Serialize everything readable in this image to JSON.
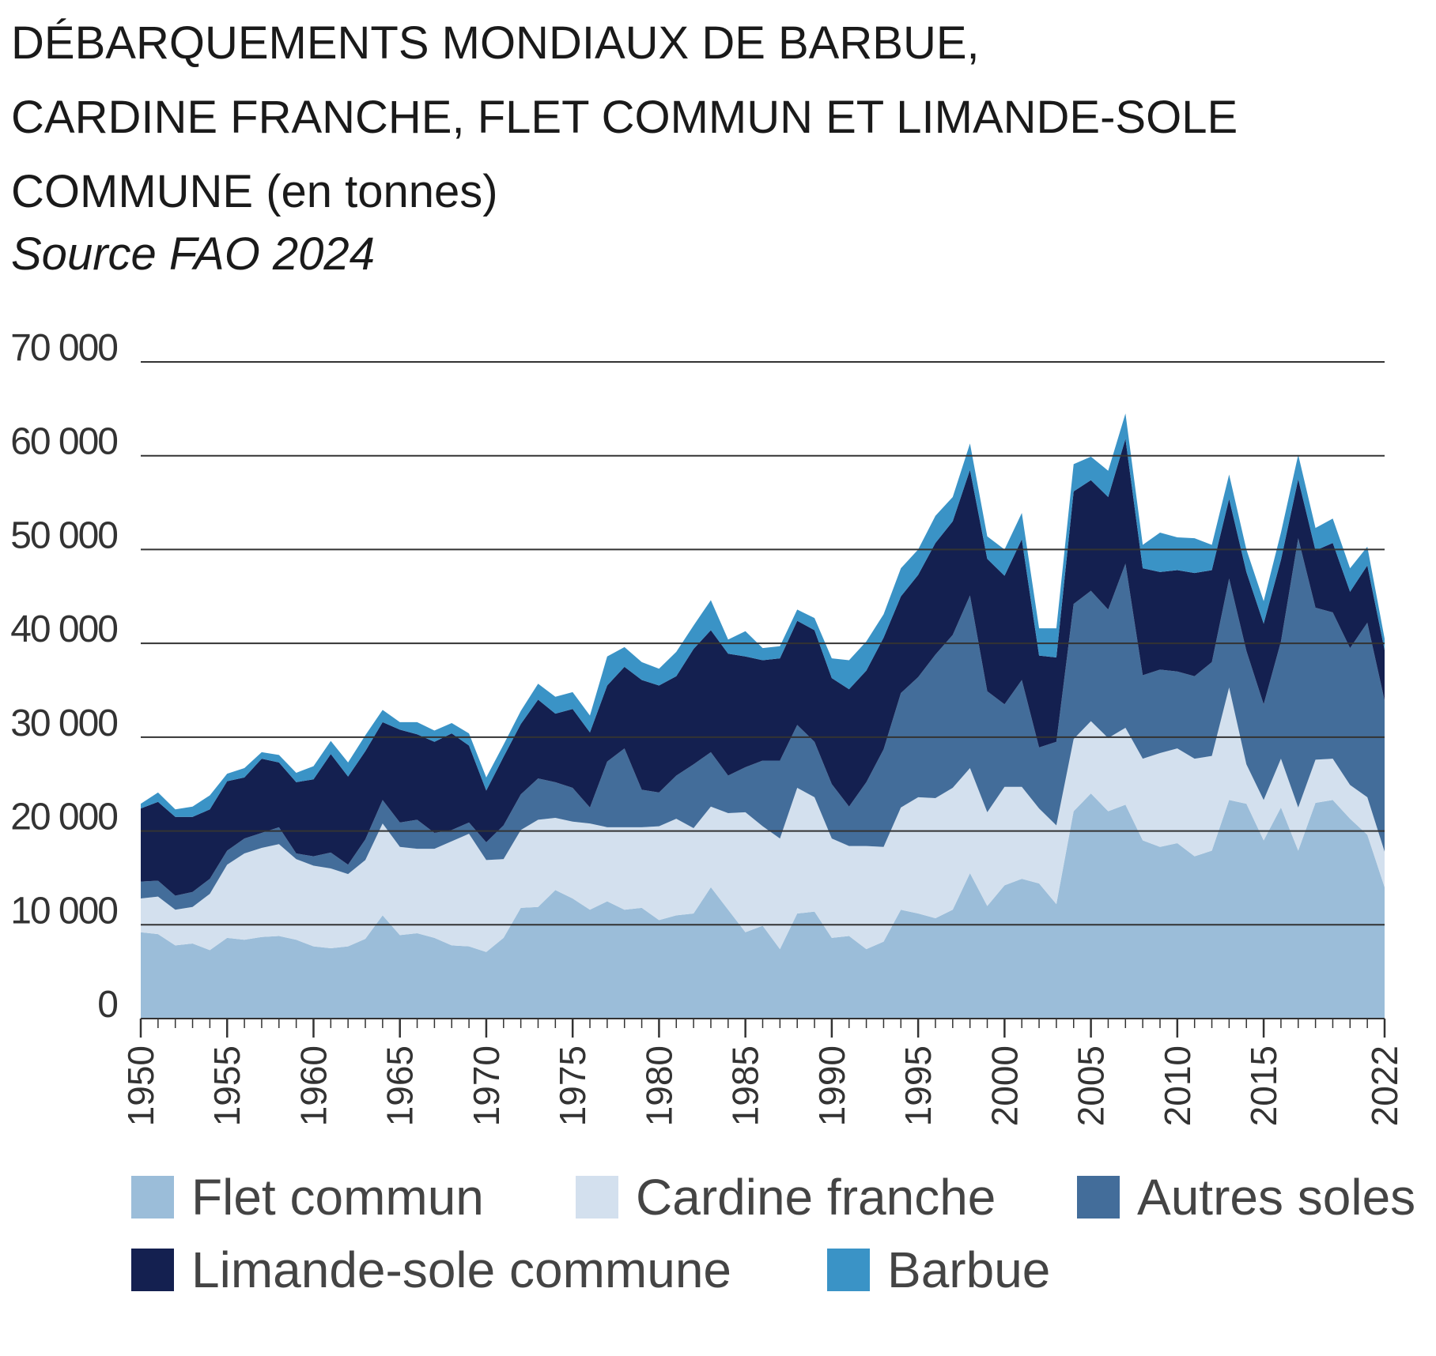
{
  "title": {
    "line1": "DÉBARQUEMENTS MONDIAUX DE BARBUE,",
    "line2": "CARDINE FRANCHE, FLET COMMUN ET LIMANDE-SOLE",
    "line3_main": "COMMUNE",
    "line3_unit": "(en tonnes)"
  },
  "source": "Source FAO 2024",
  "colors": {
    "flet": "#9bbdd9",
    "cardine": "#d3e0ee",
    "autres": "#436d9a",
    "limande": "#142050",
    "barbue": "#3a93c6",
    "grid": "#333333",
    "text": "#333333"
  },
  "chart_data": {
    "type": "area",
    "stacked": true,
    "x": [
      1950,
      1951,
      1952,
      1953,
      1954,
      1955,
      1956,
      1957,
      1958,
      1959,
      1960,
      1961,
      1962,
      1963,
      1964,
      1965,
      1966,
      1967,
      1968,
      1969,
      1970,
      1971,
      1972,
      1973,
      1974,
      1975,
      1976,
      1977,
      1978,
      1979,
      1980,
      1981,
      1982,
      1983,
      1984,
      1985,
      1986,
      1987,
      1988,
      1989,
      1990,
      1991,
      1992,
      1993,
      1994,
      1995,
      1996,
      1997,
      1998,
      1999,
      2000,
      2001,
      2002,
      2003,
      2004,
      2005,
      2006,
      2007,
      2008,
      2009,
      2010,
      2011,
      2012,
      2013,
      2014,
      2015,
      2016,
      2017,
      2018,
      2019,
      2020,
      2021,
      2022
    ],
    "x_ticks": [
      "1950",
      "1955",
      "1960",
      "1965",
      "1970",
      "1975",
      "1980",
      "1985",
      "1990",
      "1995",
      "2000",
      "2005",
      "2010",
      "2015",
      "2022"
    ],
    "x_tick_years": [
      1950,
      1955,
      1960,
      1965,
      1970,
      1975,
      1980,
      1985,
      1990,
      1995,
      2000,
      2005,
      2010,
      2015,
      2022
    ],
    "ylim": [
      0,
      70000
    ],
    "y_ticks": [
      0,
      10000,
      20000,
      30000,
      40000,
      50000,
      60000,
      70000
    ],
    "y_tick_labels": [
      "0",
      "10 000",
      "20 000",
      "30 000",
      "40 000",
      "50 000",
      "60 000",
      "70 000"
    ],
    "grid": true,
    "legend_position": "bottom",
    "series": [
      {
        "name": "Flet commun",
        "values": [
          9200,
          9000,
          7800,
          8000,
          7300,
          8600,
          8400,
          8700,
          8800,
          8400,
          7700,
          7500,
          7700,
          8500,
          11000,
          8900,
          9100,
          8600,
          7800,
          7700,
          7100,
          8600,
          11800,
          11900,
          13700,
          12800,
          11600,
          12500,
          11600,
          11800,
          10500,
          11000,
          11200,
          14000,
          11600,
          9200,
          9900,
          7400,
          11200,
          11400,
          8600,
          8800,
          7400,
          8200,
          11600,
          11200,
          10700,
          11600,
          15500,
          12000,
          14200,
          14900,
          14400,
          12200,
          22100,
          24000,
          22100,
          22800,
          19000,
          18300,
          18700,
          17300,
          17900,
          23300,
          22900,
          19000,
          22500,
          17900,
          23000,
          23300,
          21300,
          19600,
          14000
        ]
      },
      {
        "name": "Cardine franche",
        "values": [
          3600,
          4000,
          3800,
          3900,
          6000,
          7800,
          9200,
          9500,
          9800,
          8600,
          8600,
          8500,
          7700,
          8400,
          9800,
          9400,
          9000,
          9500,
          11100,
          12000,
          9800,
          8400,
          8300,
          9300,
          7700,
          8200,
          9200,
          7900,
          8800,
          8600,
          10000,
          10300,
          9100,
          8600,
          10300,
          12800,
          10600,
          11800,
          13400,
          12200,
          10600,
          9600,
          11000,
          10100,
          10900,
          12400,
          12800,
          13000,
          11200,
          10000,
          10500,
          9800,
          8000,
          8400,
          7700,
          7700,
          7800,
          8200,
          8700,
          10000,
          10100,
          10400,
          10100,
          12000,
          4200,
          4300,
          5200,
          4600,
          4600,
          4400,
          3600,
          4000,
          3800
        ]
      },
      {
        "name": "Autres soles",
        "values": [
          1800,
          1700,
          1500,
          1600,
          1600,
          1500,
          1600,
          1600,
          1800,
          600,
          1000,
          1700,
          1000,
          2200,
          2500,
          2600,
          3100,
          1700,
          1200,
          1200,
          1900,
          3600,
          3800,
          4400,
          3800,
          3600,
          1700,
          7000,
          8400,
          4000,
          3600,
          4600,
          6800,
          5800,
          4000,
          4800,
          7000,
          8300,
          6700,
          5900,
          5800,
          4200,
          6800,
          10400,
          12200,
          12800,
          15300,
          16300,
          18400,
          12900,
          8800,
          11400,
          6500,
          8900,
          14400,
          13900,
          13700,
          17500,
          8900,
          8900,
          8200,
          8800,
          10000,
          11600,
          12100,
          10200,
          12500,
          28700,
          16200,
          15600,
          14600,
          18600,
          16100
        ]
      },
      {
        "name": "Limande-sole commune",
        "values": [
          7800,
          8400,
          8400,
          8000,
          7400,
          7400,
          6500,
          7900,
          6900,
          7600,
          8200,
          10500,
          9400,
          9400,
          8300,
          9900,
          9100,
          9700,
          10300,
          8200,
          5500,
          7300,
          7500,
          8400,
          7300,
          8400,
          8000,
          8100,
          8700,
          11700,
          11400,
          10600,
          12300,
          13000,
          13000,
          11800,
          10700,
          10900,
          11100,
          11900,
          11300,
          12500,
          11900,
          11900,
          10300,
          10900,
          11900,
          12100,
          13400,
          14100,
          13700,
          15000,
          9800,
          9000,
          12000,
          11800,
          12000,
          13300,
          11400,
          10400,
          10800,
          11000,
          9800,
          8500,
          8400,
          8600,
          8700,
          6300,
          6100,
          7400,
          6000,
          6100,
          5400
        ]
      },
      {
        "name": "Barbue",
        "values": [
          500,
          1000,
          800,
          1100,
          1500,
          800,
          1000,
          700,
          800,
          1000,
          1400,
          1400,
          1500,
          1700,
          1300,
          800,
          1300,
          1200,
          1100,
          1300,
          1400,
          1300,
          1400,
          1700,
          1800,
          1800,
          1800,
          3100,
          2100,
          1900,
          1800,
          2600,
          2500,
          3200,
          1500,
          2700,
          1300,
          1300,
          1200,
          1300,
          2100,
          3100,
          3100,
          2500,
          3000,
          2700,
          2900,
          2600,
          2800,
          2400,
          2800,
          2800,
          2900,
          3100,
          2900,
          2500,
          2800,
          2700,
          2500,
          4200,
          3500,
          3700,
          2700,
          2600,
          2400,
          2400,
          2900,
          2600,
          2400,
          2600,
          2500,
          2000,
          1200
        ]
      }
    ]
  }
}
